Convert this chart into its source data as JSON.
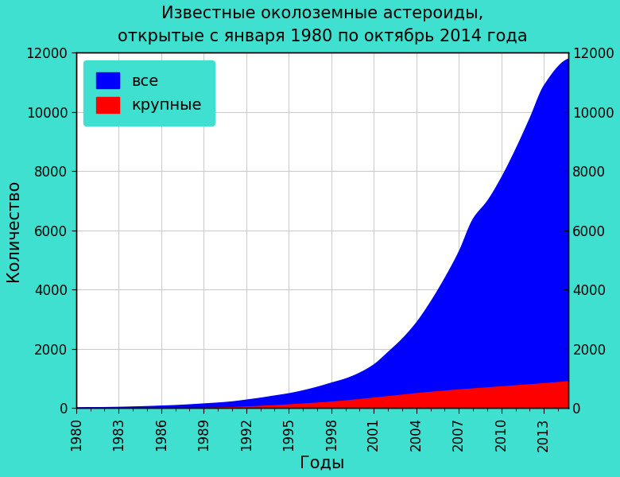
{
  "title_line1": "Известные околоземные астероиды,",
  "title_line2": "открытые с января 1980 по октябрь 2014 года",
  "xlabel": "Годы",
  "ylabel": "Количество",
  "background_color": "#40E0D0",
  "plot_bg_color": "#FFFFFF",
  "legend_labels": [
    "все",
    "крупные"
  ],
  "legend_colors": [
    "#0000FF",
    "#FF0000"
  ],
  "years": [
    1980,
    1981,
    1982,
    1983,
    1984,
    1985,
    1986,
    1987,
    1988,
    1989,
    1990,
    1991,
    1992,
    1993,
    1994,
    1995,
    1996,
    1997,
    1998,
    1999,
    2000,
    2001,
    2002,
    2003,
    2004,
    2005,
    2006,
    2007,
    2008,
    2009,
    2010,
    2011,
    2012,
    2013,
    2014.75
  ],
  "all_neas": [
    20,
    25,
    32,
    40,
    52,
    65,
    82,
    100,
    125,
    155,
    185,
    225,
    285,
    350,
    425,
    500,
    600,
    720,
    860,
    1000,
    1200,
    1480,
    1900,
    2350,
    2900,
    3600,
    4400,
    5300,
    6400,
    7000,
    7800,
    8750,
    9800,
    10900,
    11800
  ],
  "large_neas": [
    7,
    9,
    11,
    13,
    16,
    20,
    24,
    30,
    38,
    47,
    58,
    72,
    90,
    110,
    135,
    160,
    190,
    220,
    255,
    295,
    340,
    390,
    440,
    490,
    540,
    585,
    625,
    665,
    700,
    735,
    770,
    805,
    840,
    875,
    950
  ],
  "ylim": [
    0,
    12000
  ],
  "yticks": [
    0,
    2000,
    4000,
    6000,
    8000,
    10000,
    12000
  ],
  "xlim_start": 1980,
  "xlim_end": 2014.75,
  "xtick_years": [
    1980,
    1983,
    1986,
    1989,
    1992,
    1995,
    1998,
    2001,
    2004,
    2007,
    2010,
    2013
  ],
  "grid_color": "#CCCCCC",
  "tick_color": "#000000",
  "title_fontsize": 15,
  "title2_fontsize": 13,
  "axis_label_fontsize": 15,
  "tick_fontsize": 12,
  "legend_fontsize": 14
}
